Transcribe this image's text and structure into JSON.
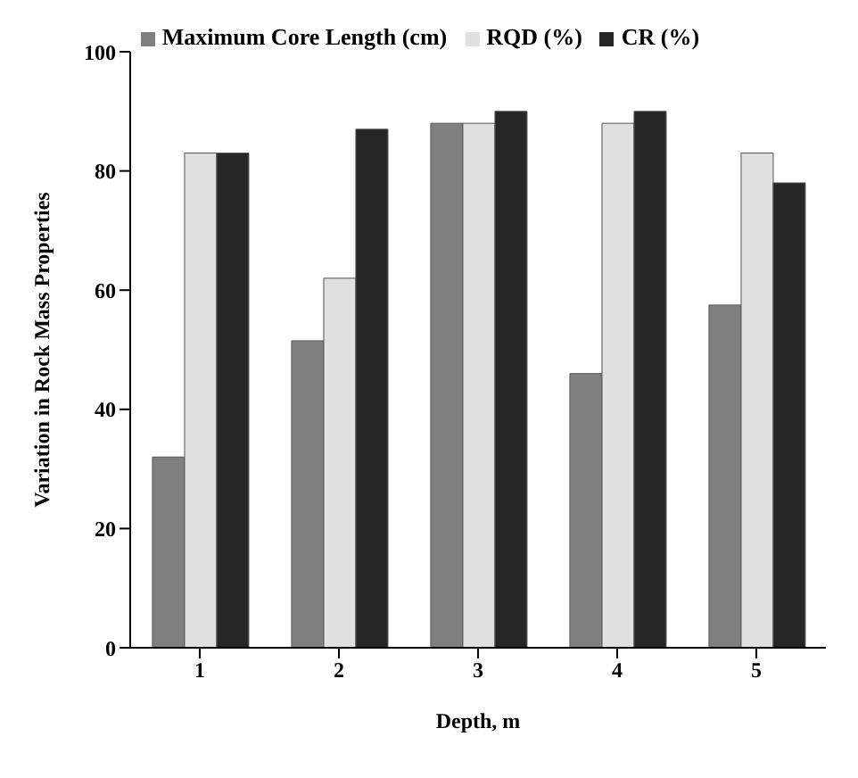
{
  "chart_data": {
    "type": "bar",
    "xlabel": "Depth, m",
    "ylabel": "Variation in Rock Mass Properties",
    "categories": [
      "1",
      "2",
      "3",
      "4",
      "5"
    ],
    "series": [
      {
        "name": "Maximum Core Length (cm)",
        "color": "#808080",
        "values": [
          32,
          51.5,
          88,
          46,
          57.5
        ]
      },
      {
        "name": "RQD (%)",
        "color": "#e0e0e0",
        "values": [
          83,
          62,
          88,
          88,
          83
        ]
      },
      {
        "name": "CR (%)",
        "color": "#262626",
        "values": [
          83,
          87,
          90,
          90,
          78
        ]
      }
    ],
    "ylim": [
      0,
      100
    ],
    "yticks": [
      0,
      20,
      40,
      60,
      80,
      100
    ],
    "grid": false,
    "legend": "top"
  }
}
